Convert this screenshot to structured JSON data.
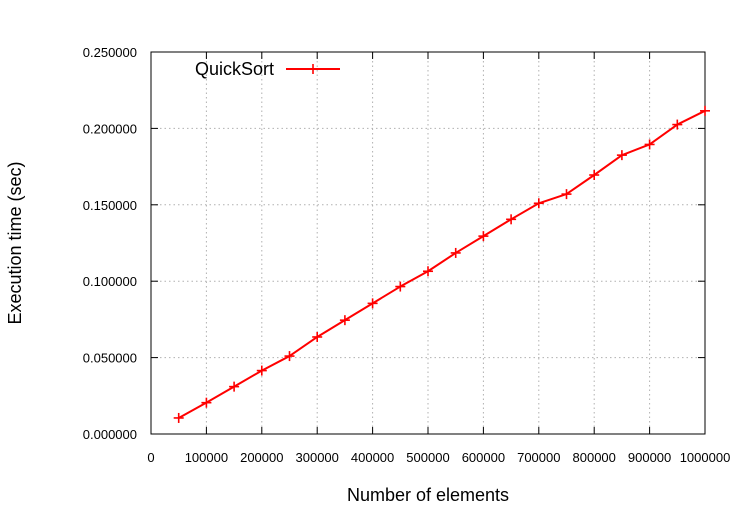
{
  "chart_data": {
    "type": "line",
    "title": "",
    "xlabel": "Number of elements",
    "ylabel": "Execution time (sec)",
    "xlim": [
      0,
      1000000
    ],
    "ylim": [
      0,
      0.25
    ],
    "grid": true,
    "legend_position": "top-left",
    "x_ticks": [
      0,
      100000,
      200000,
      300000,
      400000,
      500000,
      600000,
      700000,
      800000,
      900000,
      1000000
    ],
    "x_tick_labels": [
      "0",
      "100000",
      "200000",
      "300000",
      "400000",
      "500000",
      "600000",
      "700000",
      "800000",
      "900000",
      "1000000"
    ],
    "y_ticks": [
      0,
      0.05,
      0.1,
      0.15,
      0.2,
      0.25
    ],
    "y_tick_labels": [
      "0.000000",
      "0.050000",
      "0.100000",
      "0.150000",
      "0.200000",
      "0.250000"
    ],
    "series": [
      {
        "name": "QuickSort",
        "color": "#ff0000",
        "marker": "plus",
        "x": [
          50000,
          100000,
          150000,
          200000,
          250000,
          300000,
          350000,
          400000,
          450000,
          500000,
          550000,
          600000,
          650000,
          700000,
          750000,
          800000,
          850000,
          900000,
          950000,
          1000000
        ],
        "y": [
          0.0105,
          0.0205,
          0.031,
          0.0415,
          0.051,
          0.0635,
          0.0745,
          0.0855,
          0.0965,
          0.1065,
          0.1185,
          0.1295,
          0.1405,
          0.151,
          0.157,
          0.1695,
          0.1825,
          0.1895,
          0.2025,
          0.2115
        ]
      }
    ]
  }
}
